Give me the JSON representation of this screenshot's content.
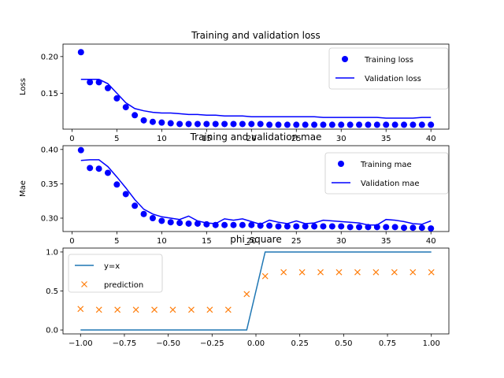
{
  "chart_data": [
    {
      "type": "line",
      "title": "Training and validation loss",
      "xlabel": "",
      "ylabel": "Loss",
      "xlim": [
        -1,
        42
      ],
      "ylim": [
        0.101,
        0.217
      ],
      "xticks": [
        0,
        5,
        10,
        15,
        20,
        25,
        30,
        35,
        40
      ],
      "yticks": [
        0.15,
        0.2
      ],
      "ytick_labels": [
        "0.15",
        "0.20"
      ],
      "legend_position": "top-right",
      "x": [
        1,
        2,
        3,
        4,
        5,
        6,
        7,
        8,
        9,
        10,
        11,
        12,
        13,
        14,
        15,
        16,
        17,
        18,
        19,
        20,
        21,
        22,
        23,
        24,
        25,
        26,
        27,
        28,
        29,
        30,
        31,
        32,
        33,
        34,
        35,
        36,
        37,
        38,
        39,
        40
      ],
      "series": [
        {
          "name": "Training loss",
          "style": "dots",
          "color": "#0000ff",
          "values": [
            0.206,
            0.165,
            0.165,
            0.157,
            0.143,
            0.131,
            0.12,
            0.113,
            0.111,
            0.11,
            0.109,
            0.108,
            0.108,
            0.108,
            0.108,
            0.108,
            0.108,
            0.108,
            0.108,
            0.108,
            0.108,
            0.107,
            0.107,
            0.107,
            0.107,
            0.107,
            0.107,
            0.107,
            0.107,
            0.107,
            0.107,
            0.107,
            0.107,
            0.107,
            0.107,
            0.107,
            0.107,
            0.107,
            0.107,
            0.107
          ]
        },
        {
          "name": "Validation loss",
          "style": "line",
          "color": "#0000ff",
          "values": [
            0.169,
            0.169,
            0.169,
            0.163,
            0.15,
            0.137,
            0.129,
            0.126,
            0.124,
            0.123,
            0.123,
            0.122,
            0.121,
            0.121,
            0.12,
            0.12,
            0.119,
            0.119,
            0.119,
            0.118,
            0.118,
            0.118,
            0.118,
            0.118,
            0.118,
            0.118,
            0.118,
            0.117,
            0.117,
            0.117,
            0.117,
            0.117,
            0.117,
            0.117,
            0.116,
            0.116,
            0.116,
            0.116,
            0.117,
            0.117
          ]
        }
      ]
    },
    {
      "type": "line",
      "title": "Training and validation mae",
      "xlabel": "",
      "ylabel": "Mae",
      "xlim": [
        -1,
        42
      ],
      "ylim": [
        0.2805,
        0.4055
      ],
      "xticks": [
        0,
        5,
        10,
        15,
        20,
        25,
        30,
        35,
        40
      ],
      "yticks": [
        0.3,
        0.35,
        0.4
      ],
      "ytick_labels": [
        "0.30",
        "0.35",
        "0.40"
      ],
      "legend_position": "top-right",
      "x": [
        1,
        2,
        3,
        4,
        5,
        6,
        7,
        8,
        9,
        10,
        11,
        12,
        13,
        14,
        15,
        16,
        17,
        18,
        19,
        20,
        21,
        22,
        23,
        24,
        25,
        26,
        27,
        28,
        29,
        30,
        31,
        32,
        33,
        34,
        35,
        36,
        37,
        38,
        39,
        40
      ],
      "series": [
        {
          "name": "Training mae",
          "style": "dots",
          "color": "#0000ff",
          "values": [
            0.399,
            0.373,
            0.372,
            0.366,
            0.349,
            0.335,
            0.318,
            0.306,
            0.3,
            0.296,
            0.294,
            0.293,
            0.292,
            0.292,
            0.291,
            0.29,
            0.29,
            0.29,
            0.29,
            0.29,
            0.289,
            0.289,
            0.288,
            0.288,
            0.288,
            0.288,
            0.288,
            0.288,
            0.288,
            0.288,
            0.287,
            0.287,
            0.287,
            0.287,
            0.287,
            0.287,
            0.286,
            0.286,
            0.286,
            0.285
          ]
        },
        {
          "name": "Validation mae",
          "style": "line",
          "color": "#0000ff",
          "values": [
            0.384,
            0.385,
            0.385,
            0.375,
            0.36,
            0.344,
            0.327,
            0.313,
            0.306,
            0.302,
            0.3,
            0.298,
            0.303,
            0.296,
            0.293,
            0.292,
            0.299,
            0.297,
            0.299,
            0.295,
            0.291,
            0.297,
            0.294,
            0.292,
            0.296,
            0.292,
            0.293,
            0.297,
            0.296,
            0.295,
            0.294,
            0.293,
            0.29,
            0.29,
            0.298,
            0.297,
            0.295,
            0.292,
            0.291,
            0.296
          ]
        }
      ]
    },
    {
      "type": "line",
      "title": "phi_square",
      "xlabel": "",
      "ylabel": "",
      "xlim": [
        -1.1,
        1.1
      ],
      "ylim": [
        -0.05,
        1.05
      ],
      "xticks": [
        -1.0,
        -0.75,
        -0.5,
        -0.25,
        0.0,
        0.25,
        0.5,
        0.75,
        1.0
      ],
      "xtick_labels": [
        "−1.00",
        "−0.75",
        "−0.50",
        "−0.25",
        "0.00",
        "0.25",
        "0.50",
        "0.75",
        "1.00"
      ],
      "yticks": [
        0.0,
        0.5,
        1.0
      ],
      "ytick_labels": [
        "0.0",
        "0.5",
        "1.0"
      ],
      "legend_position": "top-left",
      "series": [
        {
          "name": "y=x",
          "style": "line",
          "color": "#1f77b4",
          "x": [
            -1.0,
            -0.0526,
            0.0526,
            1.0
          ],
          "values": [
            0.0,
            0.0,
            1.0,
            1.0
          ]
        },
        {
          "name": "prediction",
          "style": "x",
          "color": "#ff7f0e",
          "x": [
            -1.0,
            -0.8947,
            -0.7895,
            -0.6842,
            -0.5789,
            -0.4737,
            -0.3684,
            -0.2632,
            -0.1579,
            -0.0526,
            0.0526,
            0.1579,
            0.2632,
            0.3684,
            0.4737,
            0.5789,
            0.6842,
            0.7895,
            0.8947,
            1.0
          ],
          "values": [
            0.27,
            0.26,
            0.26,
            0.26,
            0.26,
            0.26,
            0.26,
            0.26,
            0.26,
            0.46,
            0.69,
            0.74,
            0.74,
            0.74,
            0.74,
            0.74,
            0.74,
            0.74,
            0.74,
            0.74
          ]
        }
      ]
    }
  ]
}
